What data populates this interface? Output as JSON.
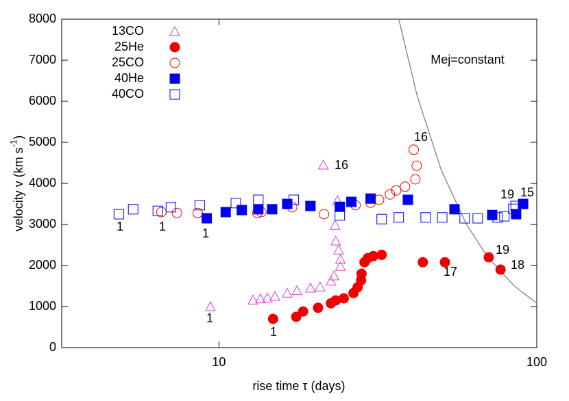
{
  "chart_data": {
    "type": "scatter",
    "x_scale": "log",
    "xlabel": "rise time τ (days)",
    "ylabel": "velocity v (km s",
    "ylabel_sup": "-1",
    "ylabel_end": ")",
    "xlim": [
      3.2,
      100
    ],
    "xticks": [
      10,
      100
    ],
    "ylim": [
      0,
      8000
    ],
    "yticks": [
      0,
      1000,
      2000,
      3000,
      4000,
      5000,
      6000,
      7000,
      8000
    ],
    "legend": "top-left",
    "series": [
      {
        "name": "13CO",
        "color": "#d83cd8",
        "marker": "triangle",
        "filled": false,
        "x": [
          9.4,
          12.8,
          13.5,
          14.2,
          15.0,
          16.4,
          17.6,
          19.4,
          20.8,
          21.3,
          22.5,
          23.0,
          23.2,
          23.3,
          23.6,
          23.8,
          24.1,
          24.1
        ],
        "values": [
          1000,
          1160,
          1190,
          1210,
          1250,
          1330,
          1390,
          1450,
          1480,
          4450,
          1620,
          1750,
          2980,
          2600,
          3580,
          2380,
          2150,
          1980
        ]
      },
      {
        "name": "25He",
        "color": "#ee0000",
        "marker": "circle",
        "filled": true,
        "x": [
          14.8,
          17.5,
          18.4,
          20.5,
          22.5,
          23.3,
          24.7,
          26.5,
          27.3,
          28.0,
          28.1,
          28.7,
          29.4,
          30.6,
          32.5,
          43.8,
          51.4,
          70.6,
          76.9
        ],
        "values": [
          700,
          750,
          880,
          970,
          1080,
          1150,
          1200,
          1330,
          1470,
          1640,
          1800,
          2080,
          2180,
          2230,
          2260,
          2080,
          2080,
          2200,
          1900
        ]
      },
      {
        "name": "25CO",
        "color": "#ee0000",
        "marker": "circle",
        "filled": false,
        "x": [
          6.59,
          7.38,
          8.57,
          13.2,
          13.6,
          17.0,
          21.4,
          26.9,
          30.0,
          31.9,
          34.5,
          36.1,
          38.5,
          41.5,
          41.9,
          41.0
        ],
        "values": [
          3300,
          3280,
          3280,
          3280,
          3300,
          3420,
          3250,
          3470,
          3530,
          3600,
          3730,
          3830,
          3920,
          4100,
          4430,
          4820
        ]
      },
      {
        "name": "40He",
        "color": "#0000ee",
        "marker": "square",
        "filled": true,
        "x": [
          9.15,
          10.5,
          11.8,
          13.3,
          14.7,
          16.4,
          19.4,
          24.0,
          26.1,
          30.0,
          39.3,
          55.1,
          72.4,
          86.1,
          90.6
        ],
        "values": [
          3150,
          3300,
          3350,
          3370,
          3370,
          3500,
          3450,
          3430,
          3550,
          3630,
          3600,
          3370,
          3230,
          3250,
          3500
        ]
      },
      {
        "name": "40CO",
        "color": "#0000ee",
        "marker": "square",
        "filled": false,
        "x": [
          4.84,
          5.37,
          6.42,
          7.06,
          8.7,
          11.3,
          13.3,
          17.2,
          24.0,
          32.5,
          36.8,
          44.7,
          50.4,
          59.3,
          65.2,
          75.3,
          79.1,
          84.4,
          85.8
        ],
        "values": [
          3250,
          3370,
          3330,
          3420,
          3470,
          3520,
          3600,
          3600,
          3220,
          3130,
          3170,
          3170,
          3170,
          3150,
          3150,
          3170,
          3200,
          3380,
          3450
        ]
      }
    ],
    "model_curve": {
      "color": "#808080",
      "x": [
        36.8,
        42,
        50,
        60,
        70,
        85,
        100
      ],
      "values": [
        8000,
        6142,
        4333,
        3009,
        2211,
        1499,
        1083
      ]
    },
    "annotations": [
      "1",
      "1",
      "1",
      "1",
      "1",
      "16",
      "16",
      "19",
      "15",
      "19",
      "17",
      "18",
      "Mej=constant"
    ]
  }
}
